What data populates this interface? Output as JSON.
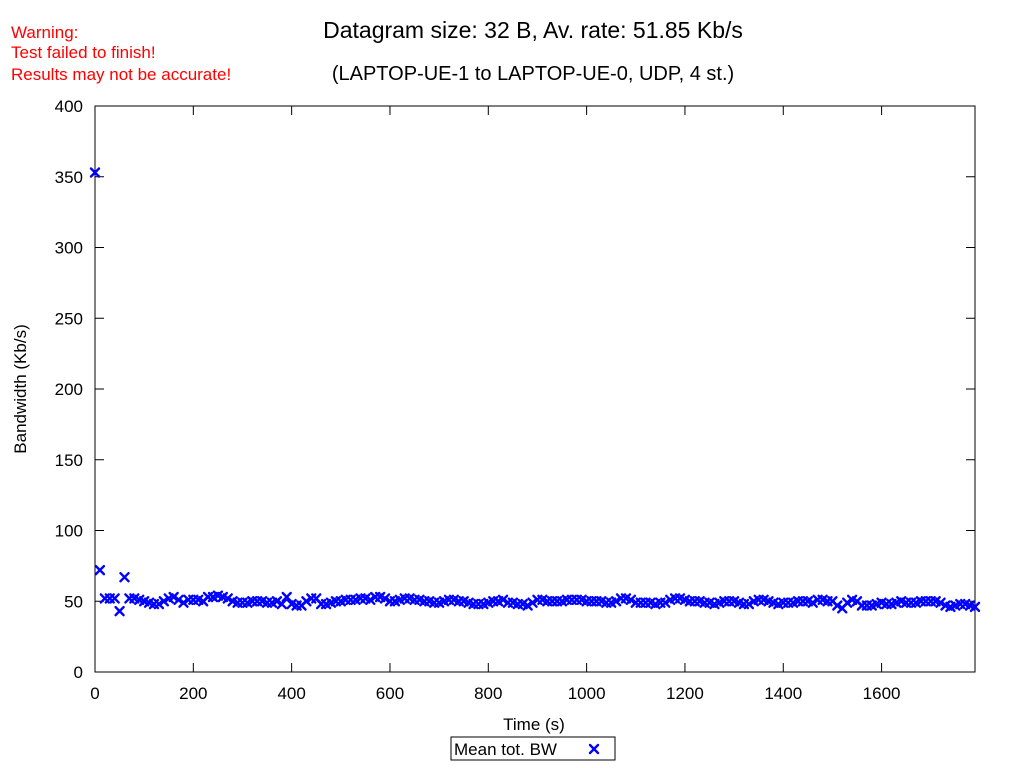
{
  "warning": {
    "lines": [
      "Warning:",
      "Test failed to finish!",
      "Results may not be accurate!"
    ],
    "color": "#ff0000"
  },
  "chart_data": {
    "type": "scatter",
    "title": "Datagram size: 32 B, Av. rate: 51.85 Kb/s",
    "subtitle": "(LAPTOP-UE-1 to LAPTOP-UE-0, UDP, 4 st.)",
    "xlabel": "Time (s)",
    "ylabel": "Bandwidth (Kb/s)",
    "xlim": [
      0,
      1790
    ],
    "ylim": [
      0,
      400
    ],
    "xticks": [
      0,
      200,
      400,
      600,
      800,
      1000,
      1200,
      1400,
      1600
    ],
    "yticks": [
      0,
      50,
      100,
      150,
      200,
      250,
      300,
      350,
      400
    ],
    "grid": false,
    "legend": "bottom-center",
    "series": [
      {
        "name": "Mean tot. BW",
        "color": "#0000ff",
        "marker": "x",
        "points": [
          [
            0,
            353
          ],
          [
            10,
            72
          ],
          [
            20,
            52
          ],
          [
            30,
            52
          ],
          [
            40,
            52
          ],
          [
            50,
            43
          ],
          [
            60,
            67
          ],
          [
            70,
            52
          ],
          [
            80,
            52
          ],
          [
            90,
            51
          ],
          [
            100,
            50
          ],
          [
            110,
            49
          ],
          [
            120,
            48
          ],
          [
            130,
            48
          ],
          [
            140,
            50
          ],
          [
            150,
            52
          ],
          [
            160,
            53
          ],
          [
            170,
            51
          ],
          [
            180,
            49
          ],
          [
            190,
            51
          ],
          [
            200,
            51
          ],
          [
            210,
            51
          ],
          [
            220,
            50
          ],
          [
            230,
            53
          ],
          [
            240,
            53
          ],
          [
            250,
            54
          ],
          [
            260,
            53
          ],
          [
            270,
            52
          ],
          [
            280,
            50
          ],
          [
            290,
            49
          ],
          [
            300,
            49
          ],
          [
            310,
            49
          ],
          [
            320,
            50
          ],
          [
            330,
            50
          ],
          [
            340,
            50
          ],
          [
            350,
            49
          ],
          [
            360,
            49
          ],
          [
            370,
            50
          ],
          [
            380,
            48
          ],
          [
            390,
            53
          ],
          [
            400,
            48
          ],
          [
            410,
            47
          ],
          [
            420,
            47
          ],
          [
            430,
            50
          ],
          [
            440,
            52
          ],
          [
            450,
            52
          ],
          [
            460,
            48
          ],
          [
            470,
            48
          ],
          [
            480,
            49
          ],
          [
            490,
            50
          ],
          [
            500,
            50
          ],
          [
            510,
            51
          ],
          [
            520,
            51
          ],
          [
            530,
            51
          ],
          [
            540,
            52
          ],
          [
            550,
            52
          ],
          [
            560,
            51
          ],
          [
            570,
            53
          ],
          [
            580,
            53
          ],
          [
            590,
            52
          ],
          [
            600,
            50
          ],
          [
            610,
            50
          ],
          [
            620,
            51
          ],
          [
            630,
            52
          ],
          [
            640,
            52
          ],
          [
            650,
            51
          ],
          [
            660,
            51
          ],
          [
            670,
            50
          ],
          [
            680,
            50
          ],
          [
            690,
            49
          ],
          [
            700,
            49
          ],
          [
            710,
            50
          ],
          [
            720,
            51
          ],
          [
            730,
            51
          ],
          [
            740,
            50
          ],
          [
            750,
            50
          ],
          [
            760,
            49
          ],
          [
            770,
            48
          ],
          [
            780,
            48
          ],
          [
            790,
            48
          ],
          [
            800,
            49
          ],
          [
            810,
            50
          ],
          [
            820,
            50
          ],
          [
            830,
            51
          ],
          [
            840,
            49
          ],
          [
            850,
            49
          ],
          [
            860,
            48
          ],
          [
            870,
            48
          ],
          [
            880,
            47
          ],
          [
            890,
            49
          ],
          [
            900,
            51
          ],
          [
            910,
            51
          ],
          [
            920,
            50
          ],
          [
            930,
            50
          ],
          [
            940,
            50
          ],
          [
            950,
            50
          ],
          [
            960,
            51
          ],
          [
            970,
            51
          ],
          [
            980,
            51
          ],
          [
            990,
            51
          ],
          [
            1000,
            50
          ],
          [
            1010,
            50
          ],
          [
            1020,
            50
          ],
          [
            1030,
            50
          ],
          [
            1040,
            49
          ],
          [
            1050,
            49
          ],
          [
            1060,
            50
          ],
          [
            1070,
            52
          ],
          [
            1080,
            52
          ],
          [
            1090,
            51
          ],
          [
            1100,
            49
          ],
          [
            1110,
            49
          ],
          [
            1120,
            49
          ],
          [
            1130,
            49
          ],
          [
            1140,
            48
          ],
          [
            1150,
            49
          ],
          [
            1160,
            49
          ],
          [
            1170,
            51
          ],
          [
            1180,
            52
          ],
          [
            1190,
            52
          ],
          [
            1200,
            51
          ],
          [
            1210,
            50
          ],
          [
            1220,
            50
          ],
          [
            1230,
            50
          ],
          [
            1240,
            49
          ],
          [
            1250,
            49
          ],
          [
            1260,
            48
          ],
          [
            1270,
            49
          ],
          [
            1280,
            50
          ],
          [
            1290,
            50
          ],
          [
            1300,
            50
          ],
          [
            1310,
            49
          ],
          [
            1320,
            48
          ],
          [
            1330,
            48
          ],
          [
            1340,
            50
          ],
          [
            1350,
            51
          ],
          [
            1360,
            51
          ],
          [
            1370,
            50
          ],
          [
            1380,
            49
          ],
          [
            1390,
            48
          ],
          [
            1400,
            49
          ],
          [
            1410,
            49
          ],
          [
            1420,
            49
          ],
          [
            1430,
            50
          ],
          [
            1440,
            50
          ],
          [
            1450,
            50
          ],
          [
            1460,
            49
          ],
          [
            1470,
            51
          ],
          [
            1480,
            51
          ],
          [
            1490,
            50
          ],
          [
            1500,
            50
          ],
          [
            1510,
            47
          ],
          [
            1520,
            45
          ],
          [
            1530,
            49
          ],
          [
            1540,
            51
          ],
          [
            1550,
            50
          ],
          [
            1560,
            47
          ],
          [
            1570,
            47
          ],
          [
            1580,
            47
          ],
          [
            1590,
            48
          ],
          [
            1600,
            49
          ],
          [
            1610,
            48
          ],
          [
            1620,
            48
          ],
          [
            1630,
            49
          ],
          [
            1640,
            50
          ],
          [
            1650,
            49
          ],
          [
            1660,
            49
          ],
          [
            1670,
            49
          ],
          [
            1680,
            50
          ],
          [
            1690,
            50
          ],
          [
            1700,
            50
          ],
          [
            1710,
            50
          ],
          [
            1720,
            49
          ],
          [
            1730,
            47
          ],
          [
            1740,
            46
          ],
          [
            1750,
            47
          ],
          [
            1760,
            48
          ],
          [
            1770,
            48
          ],
          [
            1780,
            47
          ],
          [
            1790,
            46
          ]
        ]
      }
    ]
  }
}
